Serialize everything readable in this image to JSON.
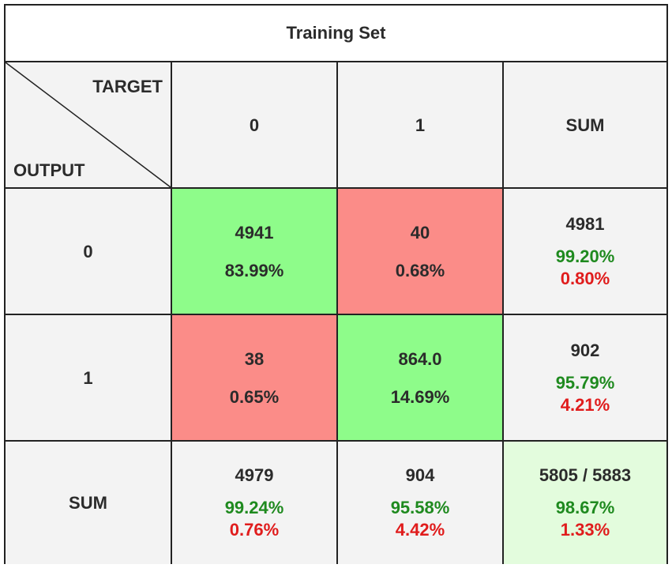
{
  "title": "Training Set",
  "header": {
    "target_label": "TARGET",
    "output_label": "OUTPUT",
    "columns": [
      "0",
      "1",
      "SUM"
    ]
  },
  "rows": [
    {
      "label": "0",
      "cells": [
        {
          "count": "4941",
          "pct": "83.99%"
        },
        {
          "count": "40",
          "pct": "0.68%"
        }
      ],
      "sum": {
        "count": "4981",
        "good": "99.20%",
        "bad": "0.80%"
      }
    },
    {
      "label": "1",
      "cells": [
        {
          "count": "38",
          "pct": "0.65%"
        },
        {
          "count": "864.0",
          "pct": "14.69%"
        }
      ],
      "sum": {
        "count": "902",
        "good": "95.79%",
        "bad": "4.21%"
      }
    }
  ],
  "sum_row": {
    "label": "SUM",
    "cells": [
      {
        "count": "4979",
        "good": "99.24%",
        "bad": "0.76%"
      },
      {
        "count": "904",
        "good": "95.58%",
        "bad": "4.42%"
      }
    ],
    "total": {
      "count": "5805 / 5883",
      "good": "98.67%",
      "bad": "1.33%"
    }
  },
  "colors": {
    "correct": "#8efc8a",
    "incorrect": "#fb8c88",
    "total": "#e3fcdd",
    "good_text": "#1f8a1f",
    "bad_text": "#e01c1c"
  }
}
